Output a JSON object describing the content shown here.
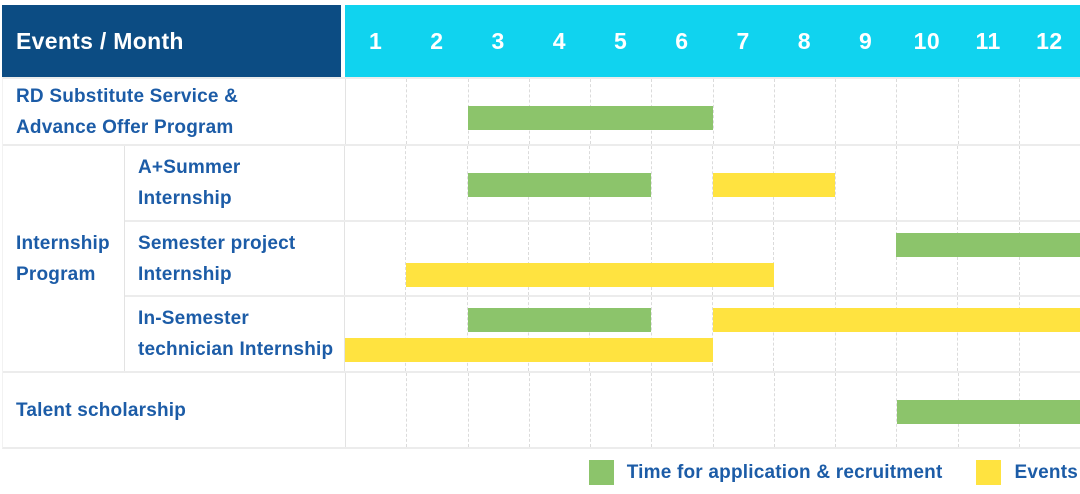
{
  "header": {
    "title": "Events / Month"
  },
  "months": [
    "1",
    "2",
    "3",
    "4",
    "5",
    "6",
    "7",
    "8",
    "9",
    "10",
    "11",
    "12"
  ],
  "colors": {
    "header_bg": "#0C4C83",
    "months_bg": "#10D3EF",
    "bar_green": "#8CC46B",
    "bar_yellow": "#FFE340",
    "label_text": "#1C5CA7"
  },
  "group": {
    "label_lines": [
      "Internship",
      "Program"
    ]
  },
  "rows": [
    {
      "label_lines": [
        "RD Substitute Service &",
        "Advance Offer Program"
      ],
      "bars": [
        {
          "type": "green",
          "start": 3,
          "end": 6,
          "line": "single"
        }
      ]
    },
    {
      "label_lines": [
        "A+Summer",
        "Internship"
      ],
      "bars": [
        {
          "type": "green",
          "start": 3,
          "end": 5,
          "line": "single"
        },
        {
          "type": "yellow",
          "start": 7,
          "end": 8,
          "line": "single"
        }
      ]
    },
    {
      "label_lines": [
        "Semester project",
        "Internship"
      ],
      "bars": [
        {
          "type": "green",
          "start": 10,
          "end": 12,
          "line": "upper"
        },
        {
          "type": "yellow",
          "start": 2,
          "end": 7,
          "line": "lower"
        }
      ]
    },
    {
      "label_lines": [
        "In-Semester",
        "technician Internship"
      ],
      "bars": [
        {
          "type": "green",
          "start": 3,
          "end": 5,
          "line": "upper"
        },
        {
          "type": "yellow",
          "start": 7,
          "end": 12,
          "line": "upper"
        },
        {
          "type": "yellow",
          "start": 1,
          "end": 6,
          "line": "lower"
        }
      ]
    },
    {
      "label_lines": [
        "Talent scholarship"
      ],
      "bars": [
        {
          "type": "green",
          "start": 10,
          "end": 12,
          "line": "single"
        }
      ]
    }
  ],
  "legend": [
    {
      "type": "green",
      "label": "Time for application & recruitment"
    },
    {
      "type": "yellow",
      "label": "Events"
    }
  ],
  "chart_data": {
    "type": "table",
    "title": "Events / Month",
    "x_axis": "Month",
    "x_ticks": [
      1,
      2,
      3,
      4,
      5,
      6,
      7,
      8,
      9,
      10,
      11,
      12
    ],
    "legend": [
      "Time for application & recruitment",
      "Events"
    ],
    "rows": [
      {
        "group": null,
        "event": "RD Substitute Service & Advance Offer Program",
        "application_recruitment_month_ranges": [
          [
            3,
            6
          ]
        ],
        "events_month_ranges": []
      },
      {
        "group": "Internship Program",
        "event": "A+Summer Internship",
        "application_recruitment_month_ranges": [
          [
            3,
            5
          ]
        ],
        "events_month_ranges": [
          [
            7,
            8
          ]
        ]
      },
      {
        "group": "Internship Program",
        "event": "Semester project Internship",
        "application_recruitment_month_ranges": [
          [
            10,
            12
          ]
        ],
        "events_month_ranges": [
          [
            2,
            7
          ]
        ]
      },
      {
        "group": "Internship Program",
        "event": "In-Semester technician Internship",
        "application_recruitment_month_ranges": [
          [
            3,
            5
          ]
        ],
        "events_month_ranges": [
          [
            1,
            6
          ],
          [
            7,
            12
          ]
        ]
      },
      {
        "group": null,
        "event": "Talent scholarship",
        "application_recruitment_month_ranges": [
          [
            10,
            12
          ]
        ],
        "events_month_ranges": []
      }
    ]
  }
}
